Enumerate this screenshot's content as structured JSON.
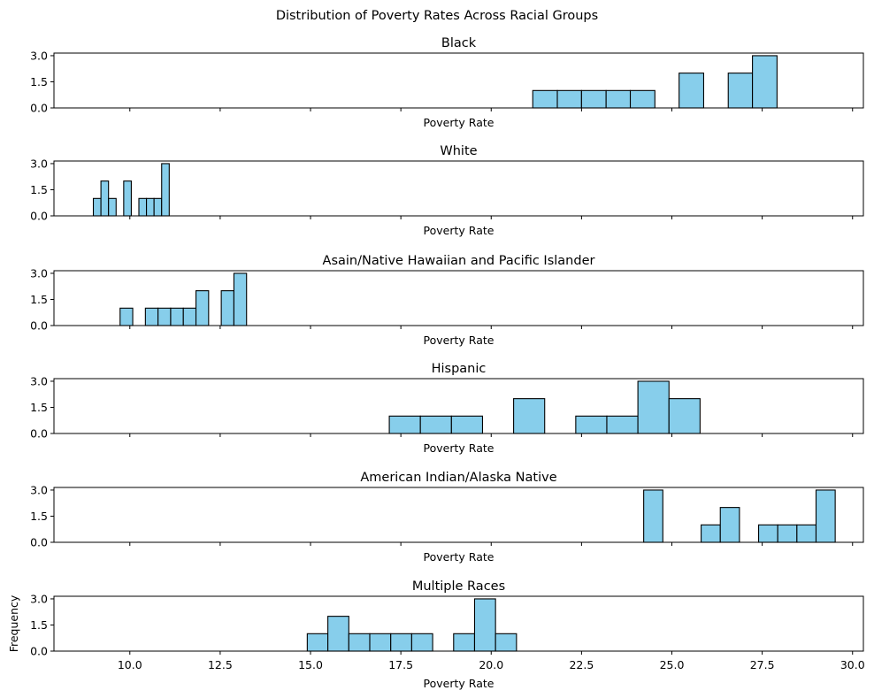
{
  "chart_data": {
    "type": "histogram",
    "suptitle": "Distribution of Poverty Rates Across Racial Groups",
    "xlim": [
      7.9,
      30.3
    ],
    "x_ticks": [
      "10.0",
      "12.5",
      "15.0",
      "17.5",
      "20.0",
      "22.5",
      "25.0",
      "27.5",
      "30.0"
    ],
    "y_ticks": [
      "0.0",
      "1.5",
      "3.0"
    ],
    "ylim": [
      0,
      3.15
    ],
    "bar_color": "#87ceeb",
    "edge_color": "#000000",
    "panels": [
      {
        "title": "Black",
        "xlabel": "Poverty Rate",
        "ylabel": "",
        "bins": [
          {
            "start": 21.15,
            "end": 21.83,
            "count": 1
          },
          {
            "start": 21.83,
            "end": 22.5,
            "count": 1
          },
          {
            "start": 22.5,
            "end": 23.18,
            "count": 1
          },
          {
            "start": 23.18,
            "end": 23.85,
            "count": 1
          },
          {
            "start": 23.85,
            "end": 24.53,
            "count": 1
          },
          {
            "start": 25.2,
            "end": 25.88,
            "count": 2
          },
          {
            "start": 26.56,
            "end": 27.23,
            "count": 2
          },
          {
            "start": 27.23,
            "end": 27.91,
            "count": 3
          }
        ]
      },
      {
        "title": "White",
        "xlabel": "Poverty Rate",
        "ylabel": "",
        "bins": [
          {
            "start": 8.99,
            "end": 9.2,
            "count": 1
          },
          {
            "start": 9.2,
            "end": 9.41,
            "count": 2
          },
          {
            "start": 9.41,
            "end": 9.62,
            "count": 1
          },
          {
            "start": 9.83,
            "end": 10.04,
            "count": 2
          },
          {
            "start": 10.25,
            "end": 10.46,
            "count": 1
          },
          {
            "start": 10.46,
            "end": 10.67,
            "count": 1
          },
          {
            "start": 10.67,
            "end": 10.88,
            "count": 1
          },
          {
            "start": 10.88,
            "end": 11.09,
            "count": 3
          }
        ]
      },
      {
        "title": "Asain/Native Hawaiian and Pacific Islander",
        "xlabel": "Poverty Rate",
        "ylabel": "",
        "bins": [
          {
            "start": 9.73,
            "end": 10.08,
            "count": 1
          },
          {
            "start": 10.43,
            "end": 10.78,
            "count": 1
          },
          {
            "start": 10.78,
            "end": 11.13,
            "count": 1
          },
          {
            "start": 11.13,
            "end": 11.48,
            "count": 1
          },
          {
            "start": 11.48,
            "end": 11.83,
            "count": 1
          },
          {
            "start": 11.83,
            "end": 12.18,
            "count": 2
          },
          {
            "start": 12.53,
            "end": 12.88,
            "count": 2
          },
          {
            "start": 12.88,
            "end": 13.23,
            "count": 3
          }
        ]
      },
      {
        "title": "Hispanic",
        "xlabel": "Poverty Rate",
        "ylabel": "",
        "bins": [
          {
            "start": 17.18,
            "end": 18.04,
            "count": 1
          },
          {
            "start": 18.04,
            "end": 18.9,
            "count": 1
          },
          {
            "start": 18.9,
            "end": 19.76,
            "count": 1
          },
          {
            "start": 20.62,
            "end": 21.48,
            "count": 2
          },
          {
            "start": 22.34,
            "end": 23.2,
            "count": 1
          },
          {
            "start": 23.2,
            "end": 24.06,
            "count": 1
          },
          {
            "start": 24.06,
            "end": 24.92,
            "count": 3
          },
          {
            "start": 24.92,
            "end": 25.78,
            "count": 2
          }
        ]
      },
      {
        "title": "American Indian/Alaska Native",
        "xlabel": "Poverty Rate",
        "ylabel": "",
        "bins": [
          {
            "start": 24.22,
            "end": 24.75,
            "count": 3
          },
          {
            "start": 25.81,
            "end": 26.34,
            "count": 1
          },
          {
            "start": 26.34,
            "end": 26.87,
            "count": 2
          },
          {
            "start": 27.4,
            "end": 27.93,
            "count": 1
          },
          {
            "start": 27.93,
            "end": 28.46,
            "count": 1
          },
          {
            "start": 28.46,
            "end": 28.99,
            "count": 1
          },
          {
            "start": 28.99,
            "end": 29.52,
            "count": 3
          }
        ]
      },
      {
        "title": "Multiple Races",
        "xlabel": "Poverty Rate",
        "ylabel": "Frequency",
        "bins": [
          {
            "start": 14.91,
            "end": 15.48,
            "count": 1
          },
          {
            "start": 15.48,
            "end": 16.06,
            "count": 2
          },
          {
            "start": 16.06,
            "end": 16.64,
            "count": 1
          },
          {
            "start": 16.64,
            "end": 17.22,
            "count": 1
          },
          {
            "start": 17.22,
            "end": 17.8,
            "count": 1
          },
          {
            "start": 17.8,
            "end": 18.38,
            "count": 1
          },
          {
            "start": 18.96,
            "end": 19.54,
            "count": 1
          },
          {
            "start": 19.54,
            "end": 20.12,
            "count": 3
          },
          {
            "start": 20.12,
            "end": 20.7,
            "count": 1
          }
        ]
      }
    ]
  }
}
